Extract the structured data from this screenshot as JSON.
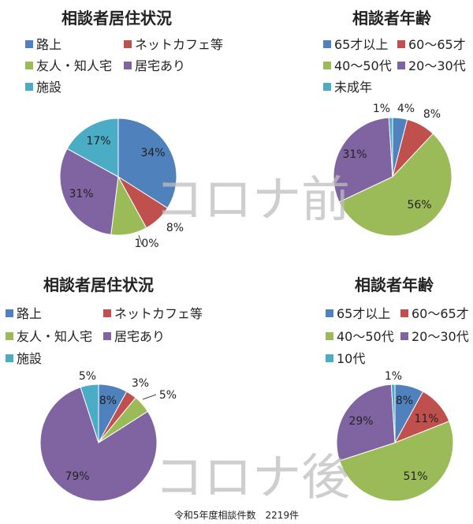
{
  "watermarks": [
    "コロナ前",
    "コロナ後"
  ],
  "footnote": "令和5年度相談件数　2219件",
  "chart_data": [
    {
      "type": "pie",
      "title": "相談者居住状況",
      "period": "コロナ前",
      "categories": [
        "路上",
        "ネットカフェ等",
        "友人・知人宅",
        "居宅あり",
        "施設"
      ],
      "values": [
        34,
        8,
        10,
        31,
        17
      ],
      "labels": [
        "34%",
        "8%",
        "10%",
        "31%",
        "17%"
      ],
      "colors": [
        "#4f81bd",
        "#c0504d",
        "#9bbb59",
        "#8064a2",
        "#4bacc6"
      ],
      "legend": "top"
    },
    {
      "type": "pie",
      "title": "相談者年齢",
      "period": "コロナ前",
      "categories": [
        "65才以上",
        "60〜65才",
        "40〜50代",
        "20〜30代",
        "未成年"
      ],
      "values": [
        4,
        8,
        56,
        31,
        1
      ],
      "labels": [
        "4%",
        "8%",
        "56%",
        "31%",
        "1%"
      ],
      "colors": [
        "#4f81bd",
        "#c0504d",
        "#9bbb59",
        "#8064a2",
        "#4bacc6"
      ],
      "legend": "top"
    },
    {
      "type": "pie",
      "title": "相談者居住状況",
      "period": "コロナ後",
      "categories": [
        "路上",
        "ネットカフェ等",
        "友人・知人宅",
        "居宅あり",
        "施設"
      ],
      "values": [
        8,
        3,
        5,
        79,
        5
      ],
      "labels": [
        "8%",
        "3%",
        "5%",
        "79%",
        "5%"
      ],
      "colors": [
        "#4f81bd",
        "#c0504d",
        "#9bbb59",
        "#8064a2",
        "#4bacc6"
      ],
      "legend": "top"
    },
    {
      "type": "pie",
      "title": "相談者年齢",
      "period": "コロナ後",
      "categories": [
        "65才以上",
        "60〜65才",
        "40〜50代",
        "20〜30代",
        "10代"
      ],
      "values": [
        8,
        11,
        51,
        29,
        1
      ],
      "labels": [
        "8%",
        "11%",
        "51%",
        "29%",
        "1%"
      ],
      "colors": [
        "#4f81bd",
        "#c0504d",
        "#9bbb59",
        "#8064a2",
        "#4bacc6"
      ],
      "legend": "top"
    }
  ]
}
